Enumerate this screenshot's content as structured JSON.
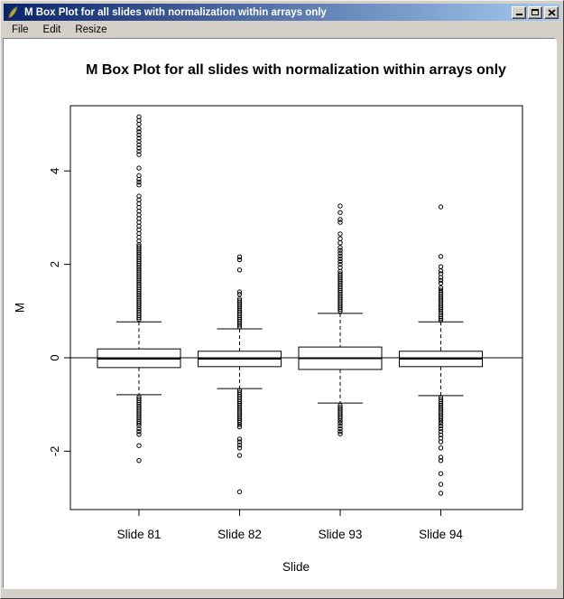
{
  "window": {
    "title": "M Box Plot for all slides with normalization within arrays only",
    "icon": "feather-icon",
    "controls": [
      "minimize",
      "maximize",
      "close"
    ]
  },
  "menu": {
    "items": [
      "File",
      "Edit",
      "Resize"
    ]
  },
  "colors": {
    "titlebar_start": "#0a246a",
    "titlebar_end": "#a6caf0",
    "chrome": "#d4d0c8",
    "canvas": "#ffffff",
    "ink": "#000000"
  },
  "chart_data": {
    "type": "boxplot",
    "title": "M Box Plot for all slides with normalization within arrays only",
    "xlabel": "Slide",
    "ylabel": "M",
    "categories": [
      "Slide 81",
      "Slide 82",
      "Slide 93",
      "Slide 94"
    ],
    "ylim": [
      -3.2,
      5.4
    ],
    "yticks": [
      -2,
      0,
      2,
      4
    ],
    "reference_line_y": 0,
    "grid": false,
    "legend": "none",
    "series": [
      {
        "name": "Slide 81",
        "median": -0.02,
        "q1": -0.21,
        "q3": 0.19,
        "whisker_low": -0.79,
        "whisker_high": 0.77,
        "outliers_high": [
          0.82,
          0.86,
          0.9,
          0.94,
          0.98,
          1.02,
          1.06,
          1.1,
          1.14,
          1.18,
          1.22,
          1.26,
          1.3,
          1.34,
          1.38,
          1.42,
          1.46,
          1.5,
          1.54,
          1.58,
          1.62,
          1.66,
          1.7,
          1.74,
          1.78,
          1.82,
          1.86,
          1.9,
          1.94,
          1.98,
          2.02,
          2.06,
          2.1,
          2.14,
          2.18,
          2.22,
          2.26,
          2.3,
          2.34,
          2.38,
          2.42,
          2.5,
          2.58,
          2.66,
          2.74,
          2.82,
          2.9,
          2.98,
          3.06,
          3.14,
          3.22,
          3.3,
          3.38,
          3.46,
          3.7,
          3.76,
          3.82,
          3.9,
          4.06,
          4.35,
          4.42,
          4.49,
          4.56,
          4.63,
          4.7,
          4.77,
          4.84,
          4.9,
          5.0,
          5.08,
          5.16
        ],
        "outliers_low": [
          -0.84,
          -0.88,
          -0.92,
          -0.96,
          -1.0,
          -1.04,
          -1.08,
          -1.12,
          -1.16,
          -1.2,
          -1.24,
          -1.28,
          -1.32,
          -1.36,
          -1.4,
          -1.45,
          -1.52,
          -1.58,
          -1.64,
          -1.88,
          -2.2
        ]
      },
      {
        "name": "Slide 82",
        "median": -0.02,
        "q1": -0.19,
        "q3": 0.14,
        "whisker_low": -0.66,
        "whisker_high": 0.62,
        "outliers_high": [
          0.66,
          0.7,
          0.74,
          0.78,
          0.82,
          0.86,
          0.9,
          0.94,
          0.98,
          1.02,
          1.06,
          1.1,
          1.14,
          1.18,
          1.22,
          1.26,
          1.36,
          1.41,
          1.88,
          2.1,
          2.16
        ],
        "outliers_low": [
          -0.7,
          -0.74,
          -0.78,
          -0.82,
          -0.86,
          -0.9,
          -0.94,
          -0.98,
          -1.02,
          -1.06,
          -1.1,
          -1.14,
          -1.18,
          -1.22,
          -1.26,
          -1.3,
          -1.34,
          -1.38,
          -1.43,
          -1.48,
          -1.74,
          -1.8,
          -1.87,
          -1.93,
          -2.09,
          -2.87
        ]
      },
      {
        "name": "Slide 93",
        "median": -0.01,
        "q1": -0.25,
        "q3": 0.23,
        "whisker_low": -0.97,
        "whisker_high": 0.95,
        "outliers_high": [
          1.0,
          1.04,
          1.08,
          1.12,
          1.16,
          1.2,
          1.24,
          1.28,
          1.32,
          1.36,
          1.4,
          1.44,
          1.48,
          1.52,
          1.56,
          1.6,
          1.64,
          1.68,
          1.72,
          1.76,
          1.8,
          1.85,
          1.93,
          2.0,
          2.06,
          2.12,
          2.18,
          2.24,
          2.3,
          2.36,
          2.46,
          2.55,
          2.65,
          2.9,
          2.96,
          3.11,
          3.25
        ],
        "outliers_low": [
          -1.02,
          -1.06,
          -1.1,
          -1.14,
          -1.18,
          -1.22,
          -1.26,
          -1.3,
          -1.35,
          -1.4,
          -1.46,
          -1.52,
          -1.58,
          -1.63
        ]
      },
      {
        "name": "Slide 94",
        "median": -0.02,
        "q1": -0.19,
        "q3": 0.14,
        "whisker_low": -0.81,
        "whisker_high": 0.77,
        "outliers_high": [
          0.8,
          0.84,
          0.88,
          0.92,
          0.96,
          1.0,
          1.04,
          1.08,
          1.12,
          1.16,
          1.2,
          1.24,
          1.28,
          1.32,
          1.36,
          1.4,
          1.45,
          1.5,
          1.6,
          1.66,
          1.72,
          1.8,
          1.86,
          1.95,
          2.17,
          3.23
        ],
        "outliers_low": [
          -0.86,
          -0.9,
          -0.94,
          -0.98,
          -1.02,
          -1.06,
          -1.1,
          -1.14,
          -1.18,
          -1.22,
          -1.26,
          -1.3,
          -1.35,
          -1.4,
          -1.46,
          -1.52,
          -1.58,
          -1.65,
          -1.72,
          -1.8,
          -1.93,
          -2.13,
          -2.2,
          -2.48,
          -2.71,
          -2.9
        ]
      }
    ]
  }
}
